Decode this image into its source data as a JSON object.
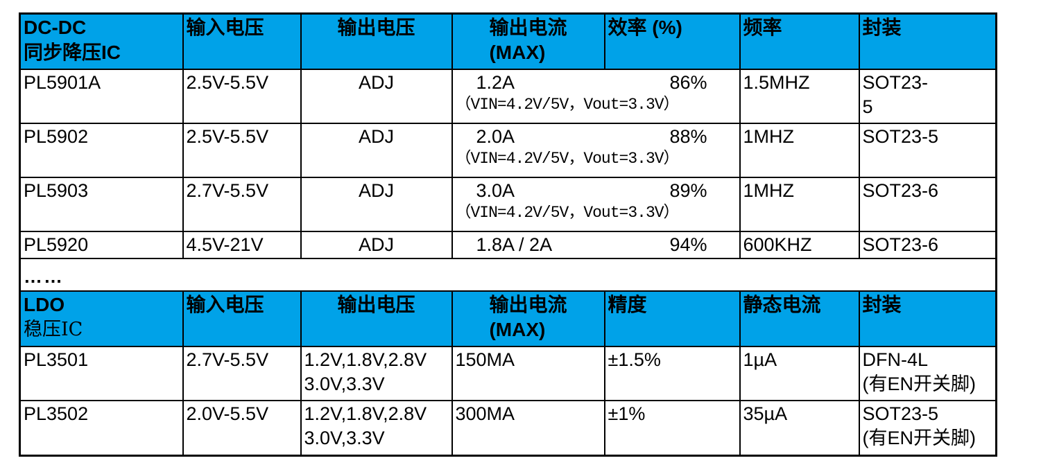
{
  "colors": {
    "header_bg": "#00A2E8",
    "border": "#000000",
    "text": "#000000"
  },
  "separator": {
    "dots": "……"
  },
  "dcdc_table": {
    "header": {
      "product_line1": "DC-DC",
      "product_line2": "同步降压IC",
      "vin": "输入电压",
      "vout": "输出电压",
      "iout": "输出电流\n(MAX)",
      "eff": "效率 (%)",
      "freq": "频率",
      "pkg": "封装"
    },
    "rows": [
      {
        "model": "PL5901A",
        "vin": "2.5V-5.5V",
        "vout": "ADJ",
        "iout": "1.2A",
        "eff": "86%",
        "cond": "（VIN=4.2V/5V，Vout=3.3V）",
        "freq": "1.5MHZ",
        "pkg": "SOT23-\n5"
      },
      {
        "model": "PL5902",
        "vin": "2.5V-5.5V",
        "vout": "ADJ",
        "iout": "2.0A",
        "eff": "88%",
        "cond": "（VIN=4.2V/5V，Vout=3.3V）",
        "freq": "1MHZ",
        "pkg": "SOT23-5"
      },
      {
        "model": "PL5903",
        "vin": "2.7V-5.5V",
        "vout": "ADJ",
        "iout": "3.0A",
        "eff": "89%",
        "cond": "（VIN=4.2V/5V，Vout=3.3V）",
        "freq": "1MHZ",
        "pkg": "SOT23-6"
      },
      {
        "model": "PL5920",
        "vin": "4.5V-21V",
        "vout": "ADJ",
        "iout": "1.8A / 2A",
        "eff": "94%",
        "cond": "",
        "freq": "600KHZ",
        "pkg": "SOT23-6"
      }
    ]
  },
  "ldo_table": {
    "header": {
      "product_line1": "LDO",
      "product_line2": "稳压IC",
      "vin": "输入电压",
      "vout": "输出电压",
      "iout": "输出电流\n(MAX)",
      "acc": "精度",
      "iq": "静态电流",
      "pkg": "封装"
    },
    "rows": [
      {
        "model": "PL3501",
        "vin": "2.7V-5.5V",
        "vout": "1.2V,1.8V,2.8V\n3.0V,3.3V",
        "iout": "150MA",
        "acc": "±1.5%",
        "iq": "1µA",
        "pkg": "DFN-4L\n(有EN开关脚)"
      },
      {
        "model": "PL3502",
        "vin": "2.0V-5.5V",
        "vout": "1.2V,1.8V,2.8V\n3.0V,3.3V",
        "iout": "300MA",
        "acc": "±1%",
        "iq": "35µA",
        "pkg": "SOT23-5\n(有EN开关脚)"
      }
    ]
  }
}
